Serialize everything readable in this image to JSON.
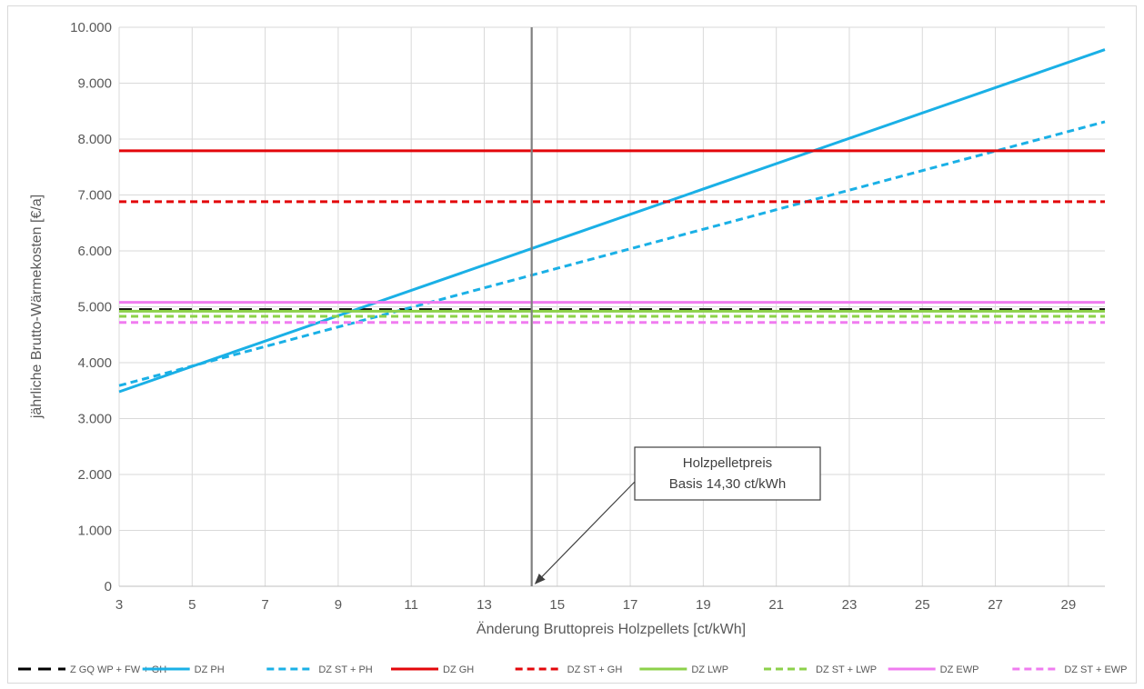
{
  "chart_data": {
    "type": "line",
    "xlabel": "Änderung Bruttopreis Holzpellets [ct/kWh]",
    "ylabel": "jährliche Brutto-Wärmekosten [€/a]",
    "xlim": [
      3,
      30
    ],
    "ylim": [
      0,
      10000
    ],
    "x_ticks": [
      3,
      5,
      7,
      9,
      11,
      13,
      15,
      17,
      19,
      21,
      23,
      25,
      27,
      29
    ],
    "x_tick_labels": [
      "3",
      "5",
      "7",
      "9",
      "11",
      "13",
      "15",
      "17",
      "19",
      "21",
      "23",
      "25",
      "27",
      "29"
    ],
    "y_ticks": [
      0,
      1000,
      2000,
      3000,
      4000,
      5000,
      6000,
      7000,
      8000,
      9000,
      10000
    ],
    "y_tick_labels": [
      "0",
      "1.000",
      "2.000",
      "3.000",
      "4.000",
      "5.000",
      "6.000",
      "7.000",
      "8.000",
      "9.000",
      "10.000"
    ],
    "grid": true,
    "legend_position": "bottom",
    "vertical_line": {
      "x": 14.3,
      "color": "#7f7f7f"
    },
    "annotation": {
      "lines": [
        "Holzpelletpreis",
        "Basis 14,30 ct/kWh"
      ],
      "target_x": 14.3,
      "target_y": 0
    },
    "series": [
      {
        "name": "Z GQ  WP + FW + GH",
        "x": [
          3,
          30
        ],
        "y": [
          4950,
          4950
        ],
        "color": "#000000",
        "dash": "longdash"
      },
      {
        "name": "DZ PH",
        "x": [
          3,
          30
        ],
        "y": [
          3480,
          9600
        ],
        "color": "#1ab0e6",
        "dash": "solid"
      },
      {
        "name": "DZ ST + PH",
        "x": [
          3,
          30
        ],
        "y": [
          3590,
          8310
        ],
        "color": "#1ab0e6",
        "dash": "dash"
      },
      {
        "name": "DZ GH",
        "x": [
          3,
          30
        ],
        "y": [
          7790,
          7790
        ],
        "color": "#e3060a",
        "dash": "solid"
      },
      {
        "name": "DZ ST + GH",
        "x": [
          3,
          30
        ],
        "y": [
          6880,
          6880
        ],
        "color": "#e3060a",
        "dash": "dash"
      },
      {
        "name": "DZ LWP",
        "x": [
          3,
          30
        ],
        "y": [
          4920,
          4920
        ],
        "color": "#8cd14a",
        "dash": "solid"
      },
      {
        "name": "DZ ST + LWP",
        "x": [
          3,
          30
        ],
        "y": [
          4830,
          4830
        ],
        "color": "#8cd14a",
        "dash": "dash"
      },
      {
        "name": "DZ EWP",
        "x": [
          3,
          30
        ],
        "y": [
          5080,
          5080
        ],
        "color": "#f07cf0",
        "dash": "solid"
      },
      {
        "name": "DZ ST + EWP",
        "x": [
          3,
          30
        ],
        "y": [
          4720,
          4720
        ],
        "color": "#f07cf0",
        "dash": "dash"
      }
    ]
  }
}
